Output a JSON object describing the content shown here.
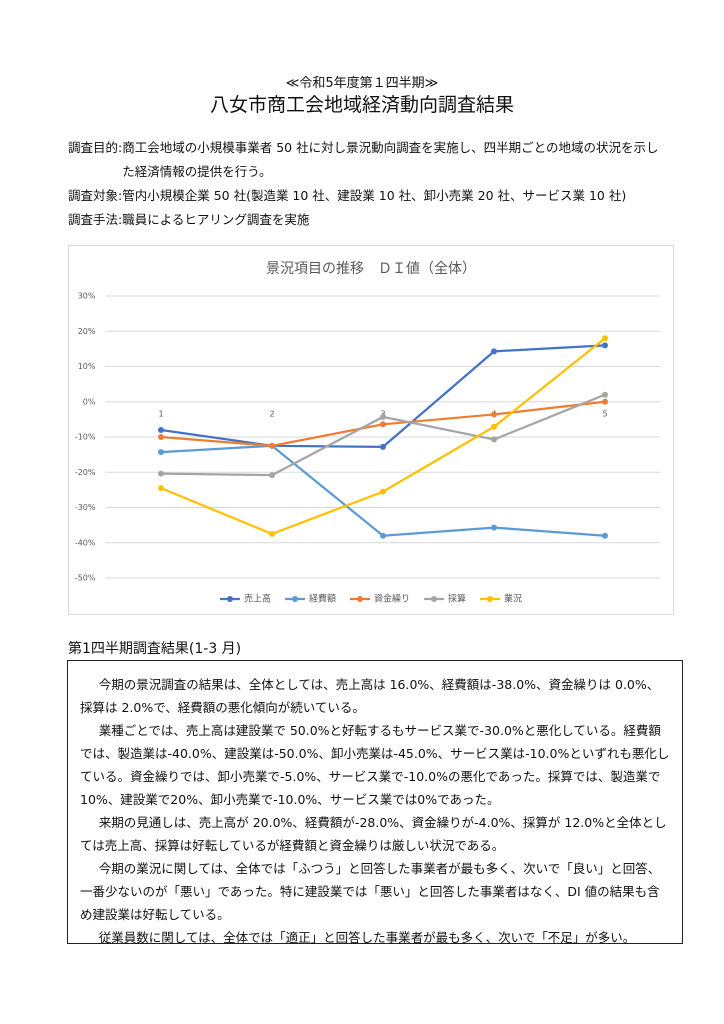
{
  "header": {
    "subtitle": "≪令和5年度第１四半期≫",
    "title": "八女市商工会地域経済動向調査結果"
  },
  "info": [
    {
      "label": "調査目的:",
      "text": "商工会地域の小規模事業者 50 社に対し景況動向調査を実施し、四半期ごとの地域の状況を示した経済情報の提供を行う。"
    },
    {
      "label": "調査対象:",
      "text": "管内小規模企業 50 社(製造業 10 社、建設業 10 社、卸小売業 20 社、サービス業 10 社)"
    },
    {
      "label": "調査手法:",
      "text": "職員によるヒアリング調査を実施"
    }
  ],
  "chart_data": {
    "type": "line",
    "title": "景況項目の推移　ＤＩ値（全体）",
    "categories": [
      "1",
      "2",
      "3",
      "4",
      "5"
    ],
    "series": [
      {
        "name": "売上高",
        "color": "#4472c4",
        "values": [
          -8,
          -12.5,
          -12.8,
          14.3,
          16
        ]
      },
      {
        "name": "経費額",
        "color": "#5b9bd5",
        "values": [
          -14.3,
          -12.5,
          -38,
          -35.7,
          -38
        ]
      },
      {
        "name": "資金繰り",
        "color": "#ed7d31",
        "values": [
          -10,
          -12.5,
          -6.4,
          -3.6,
          0
        ]
      },
      {
        "name": "採算",
        "color": "#a5a5a5",
        "values": [
          -20.4,
          -20.8,
          -4.3,
          -10.7,
          2
        ]
      },
      {
        "name": "業況",
        "color": "#ffc000",
        "values": [
          -24.5,
          -37.5,
          -25.5,
          -7.1,
          18
        ]
      }
    ],
    "ylim": [
      -50,
      30
    ],
    "yticks": [
      {
        "value": -50,
        "label": "-50%"
      },
      {
        "value": -40,
        "label": "-40%"
      },
      {
        "value": -30,
        "label": "-30%"
      },
      {
        "value": -20,
        "label": "-20%"
      },
      {
        "value": -10,
        "label": "-10%"
      },
      {
        "value": 0,
        "label": "0%"
      },
      {
        "value": 10,
        "label": "10%"
      },
      {
        "value": 20,
        "label": "20%"
      },
      {
        "value": 30,
        "label": "30%"
      }
    ],
    "grid": true,
    "legend": "bottom"
  },
  "results": {
    "heading": "第1四半期調査結果(1-3 月)",
    "paragraphs": [
      "今期の景況調査の結果は、全体としては、売上高は 16.0%、経費額は-38.0%、資金繰りは 0.0%、採算は 2.0%で、経費額の悪化傾向が続いている。",
      "業種ごとでは、売上高は建設業で 50.0%と好転するもサービス業で-30.0%と悪化している。経費額では、製造業は-40.0%、建設業は-50.0%、卸小売業は-45.0%、サービス業は-10.0%といずれも悪化している。資金繰りでは、卸小売業で-5.0%、サービス業で-10.0%の悪化であった。採算では、製造業で10%、建設業で20%、卸小売業で-10.0%、サービス業では0%であった。",
      "来期の見通しは、売上高が 20.0%、経費額が-28.0%、資金繰りが-4.0%、採算が 12.0%と全体としては売上高、採算は好転しているが経費額と資金繰りは厳しい状況である。",
      "今期の業況に関しては、全体では「ふつう」と回答した事業者が最も多く、次いで「良い」と回答、一番少ないのが「悪い」であった。特に建設業では「悪い」と回答した事業者はなく、DI 値の結果も含め建設業は好転している。",
      "従業員数に関しては、全体では「適正」と回答した事業者が最も多く、次いで「不足」が多い。"
    ]
  }
}
